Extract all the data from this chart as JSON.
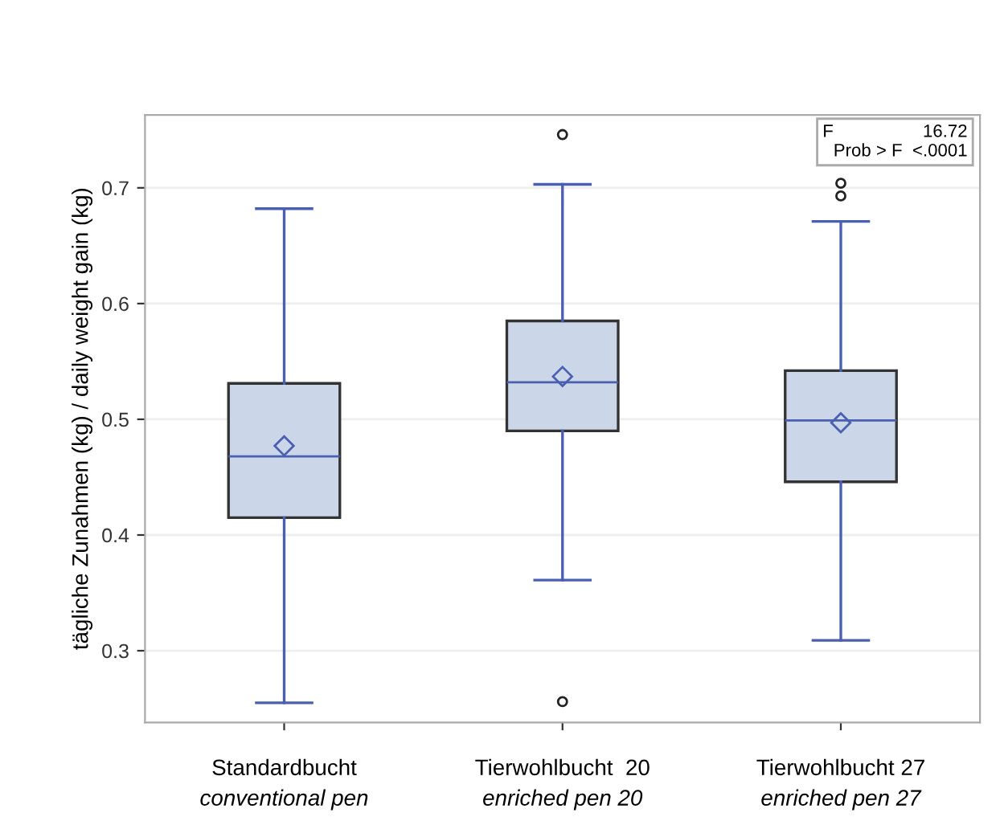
{
  "chart_data": {
    "type": "box",
    "ylabel": "tägliche Zunahmen (kg) / daily weight gain (kg)",
    "categories": [
      "Standardbucht\nconventional pen",
      "Tierwohlbucht  20\nenriched pen 20",
      "Tierwohlbucht 27\nenriched pen 27"
    ],
    "boxes": [
      {
        "low": 0.255,
        "q1": 0.415,
        "median": 0.468,
        "q3": 0.531,
        "high": 0.682,
        "mean": 0.477
      },
      {
        "low": 0.361,
        "q1": 0.49,
        "median": 0.532,
        "q3": 0.585,
        "high": 0.703,
        "mean": 0.537,
        "outliers": [
          0.746,
          0.256
        ]
      },
      {
        "low": 0.309,
        "q1": 0.446,
        "median": 0.499,
        "q3": 0.542,
        "high": 0.671,
        "mean": 0.497,
        "outliers": [
          0.704,
          0.693
        ]
      }
    ],
    "color": "#cbd7e8",
    "ylim": [
      0.238,
      0.763
    ],
    "yticks": [
      0.3,
      0.4,
      0.5,
      0.6,
      0.7
    ],
    "grid": "y",
    "annotations": [
      "F                  16.72\nProb > F  <.0001"
    ]
  }
}
